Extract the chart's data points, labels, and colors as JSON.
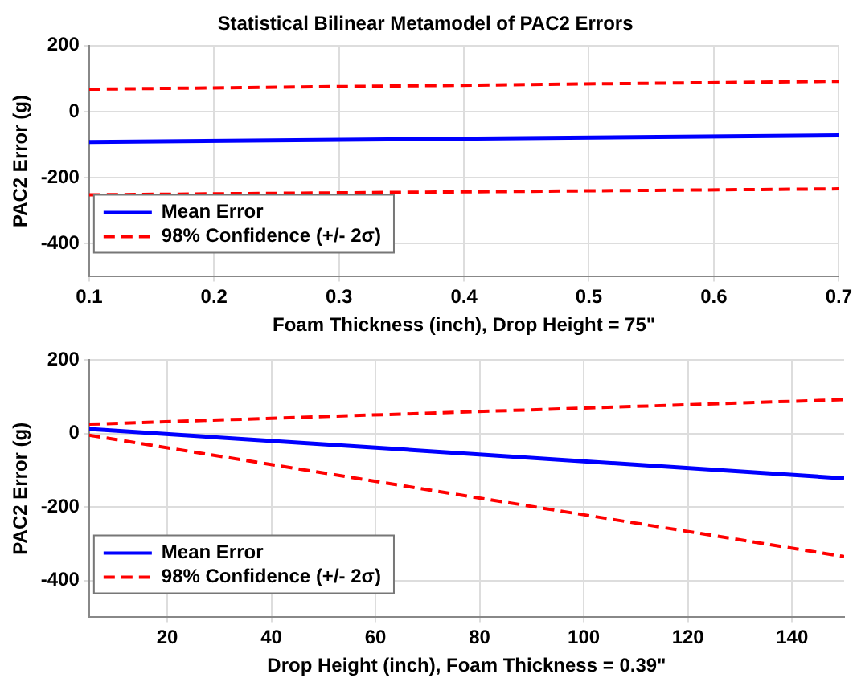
{
  "chart_data": [
    {
      "type": "line",
      "title": "Statistical Bilinear Metamodel of PAC2 Errors",
      "xlabel": "Foam Thickness (inch), Drop Height = 75\"",
      "ylabel": "PAC2 Error (g)",
      "xlim": [
        0.1,
        0.7
      ],
      "xticks": [
        0.1,
        0.2,
        0.3,
        0.4,
        0.5,
        0.6,
        0.7
      ],
      "ylim": [
        -500,
        200
      ],
      "yticks": [
        -400,
        -200,
        0,
        200
      ],
      "grid": true,
      "legend": "bottom left",
      "marker": "none",
      "series": [
        {
          "name": "Mean Error",
          "color": "#0000ff",
          "line_style": "solid",
          "x": [
            0.1,
            0.7
          ],
          "values": [
            -92,
            -72
          ]
        },
        {
          "name": "98% Confidence (+/- 2σ)",
          "color": "#ff0000",
          "line_style": "dashed",
          "x": [
            0.1,
            0.7
          ],
          "values": [
            68,
            92
          ]
        },
        {
          "color": "#ff0000",
          "line_style": "dashed",
          "x": [
            0.1,
            0.7
          ],
          "values": [
            -252,
            -234
          ]
        }
      ]
    },
    {
      "type": "line",
      "xlabel": "Drop Height (inch), Foam Thickness = 0.39\"",
      "ylabel": "PAC2 Error (g)",
      "xlim": [
        5,
        150
      ],
      "xticks": [
        20,
        40,
        60,
        80,
        100,
        120,
        140
      ],
      "ylim": [
        -500,
        200
      ],
      "yticks": [
        -400,
        -200,
        0,
        200
      ],
      "grid": true,
      "legend": "bottom left",
      "marker": "none",
      "series": [
        {
          "name": "Mean Error",
          "color": "#0000ff",
          "line_style": "solid",
          "x": [
            5,
            150
          ],
          "values": [
            12,
            -122
          ]
        },
        {
          "name": "98% Confidence (+/- 2σ)",
          "color": "#ff0000",
          "line_style": "dashed",
          "x": [
            5,
            150
          ],
          "values": [
            25,
            92
          ]
        },
        {
          "color": "#ff0000",
          "line_style": "dashed",
          "x": [
            5,
            150
          ],
          "values": [
            -5,
            -335
          ]
        }
      ]
    }
  ]
}
